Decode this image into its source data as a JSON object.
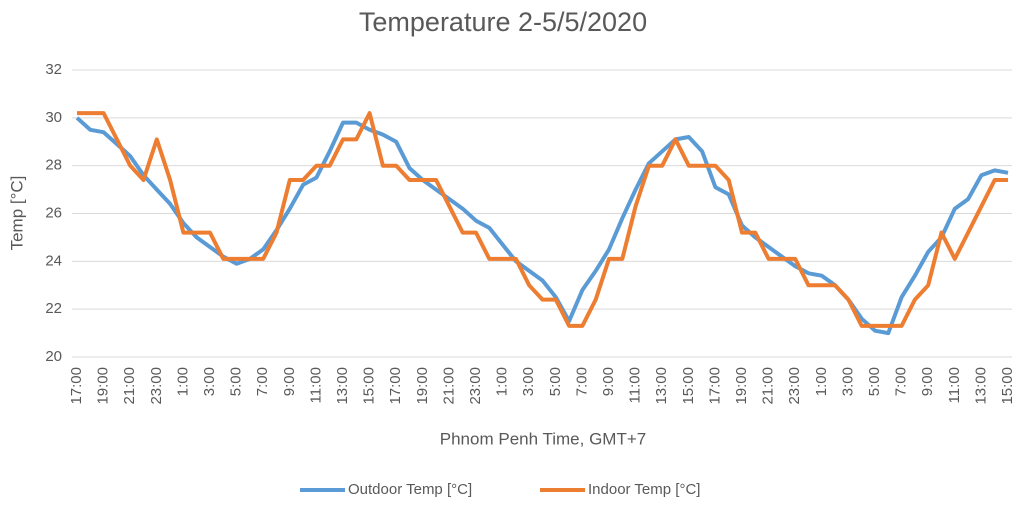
{
  "chart_data": {
    "type": "line",
    "title": "Temperature 2-5/5/2020",
    "x_label": "Phnom Penh Time, GMT+7",
    "y_label": "Temp [°C]",
    "categories": [
      "17:00",
      null,
      "19:00",
      null,
      "21:00",
      null,
      "23:00",
      null,
      "1:00",
      null,
      "3:00",
      null,
      "5:00",
      null,
      "7:00",
      null,
      "9:00",
      null,
      "11:00",
      null,
      "13:00",
      null,
      "15:00",
      null,
      "17:00",
      null,
      "19:00",
      null,
      "21:00",
      null,
      "23:00",
      null,
      "1:00",
      null,
      "3:00",
      null,
      "5:00",
      null,
      "7:00",
      null,
      "9:00",
      null,
      "11:00",
      null,
      "13:00",
      null,
      "15:00",
      null,
      "17:00",
      null,
      "19:00",
      null,
      "21:00",
      null,
      "23:00",
      null,
      "1:00",
      null,
      "3:00",
      null,
      "5:00",
      null,
      "7:00",
      null,
      "9:00",
      null,
      "11:00",
      null,
      "13:00",
      null,
      "15:00"
    ],
    "series": [
      {
        "name": "Outdoor Temp [°C]",
        "color": "#5b9bd5",
        "values": [
          30.0,
          29.5,
          29.4,
          28.9,
          28.4,
          27.6,
          27.0,
          26.4,
          25.6,
          25.0,
          24.6,
          24.2,
          23.9,
          24.1,
          24.5,
          25.3,
          26.2,
          27.2,
          27.5,
          28.6,
          29.8,
          29.8,
          29.5,
          29.3,
          29.0,
          27.9,
          27.4,
          27.0,
          26.6,
          26.2,
          25.7,
          25.4,
          24.7,
          24.0,
          23.6,
          23.2,
          22.5,
          21.5,
          22.8,
          23.6,
          24.5,
          25.8,
          27.0,
          28.1,
          28.6,
          29.1,
          29.2,
          28.6,
          27.1,
          26.8,
          25.5,
          25.0,
          24.6,
          24.2,
          23.8,
          23.5,
          23.4,
          23.0,
          22.4,
          21.6,
          21.1,
          21.0,
          22.5,
          23.4,
          24.4,
          25.0,
          26.2,
          26.6,
          27.6,
          27.8,
          27.7
        ]
      },
      {
        "name": "Indoor Temp [°C]",
        "color": "#ed7d31",
        "values": [
          30.2,
          30.2,
          30.2,
          29.1,
          28.0,
          27.4,
          29.1,
          27.4,
          25.2,
          25.2,
          25.2,
          24.1,
          24.1,
          24.1,
          24.1,
          25.2,
          27.4,
          27.4,
          28.0,
          28.0,
          29.1,
          29.1,
          30.2,
          28.0,
          28.0,
          27.4,
          27.4,
          27.4,
          26.3,
          25.2,
          25.2,
          24.1,
          24.1,
          24.1,
          23.0,
          22.4,
          22.4,
          21.3,
          21.3,
          22.4,
          24.1,
          24.1,
          26.3,
          28.0,
          28.0,
          29.1,
          28.0,
          28.0,
          28.0,
          27.4,
          25.2,
          25.2,
          24.1,
          24.1,
          24.1,
          23.0,
          23.0,
          23.0,
          22.4,
          21.3,
          21.3,
          21.3,
          21.3,
          22.4,
          23.0,
          25.2,
          24.1,
          25.2,
          26.3,
          27.4,
          27.4
        ]
      }
    ],
    "ylim": [
      20,
      32
    ],
    "yticks": [
      20,
      22,
      24,
      26,
      28,
      30,
      32
    ],
    "grid": true,
    "legend": "bottom"
  }
}
